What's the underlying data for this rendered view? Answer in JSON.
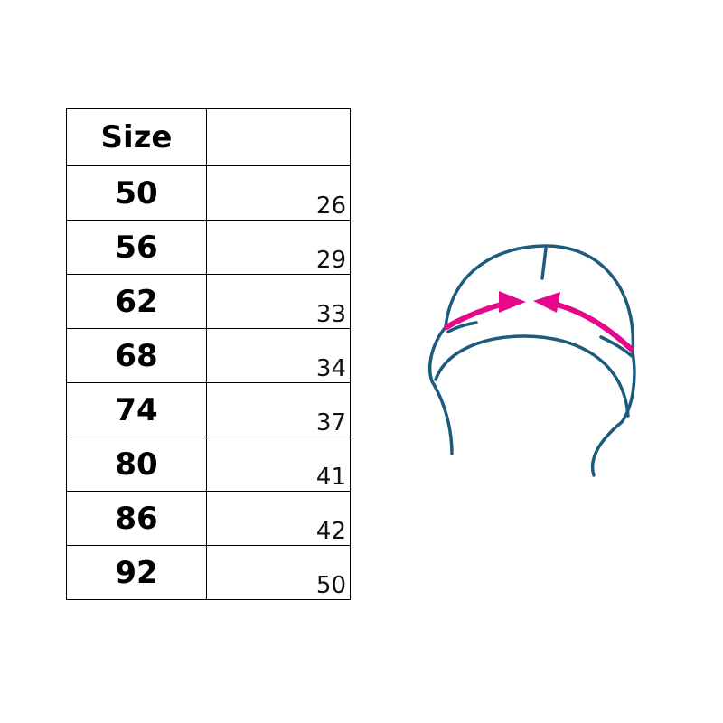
{
  "table": {
    "header": [
      "Size",
      ""
    ],
    "rows": [
      {
        "size": "50",
        "value": "26"
      },
      {
        "size": "56",
        "value": "29"
      },
      {
        "size": "62",
        "value": "33"
      },
      {
        "size": "68",
        "value": "34"
      },
      {
        "size": "74",
        "value": "37"
      },
      {
        "size": "80",
        "value": "41"
      },
      {
        "size": "86",
        "value": "42"
      },
      {
        "size": "92",
        "value": "50"
      }
    ]
  },
  "illustration": {
    "icon": "hat-circumference-icon",
    "outline_color": "#1c5a7e",
    "arrow_color": "#e5088b"
  }
}
